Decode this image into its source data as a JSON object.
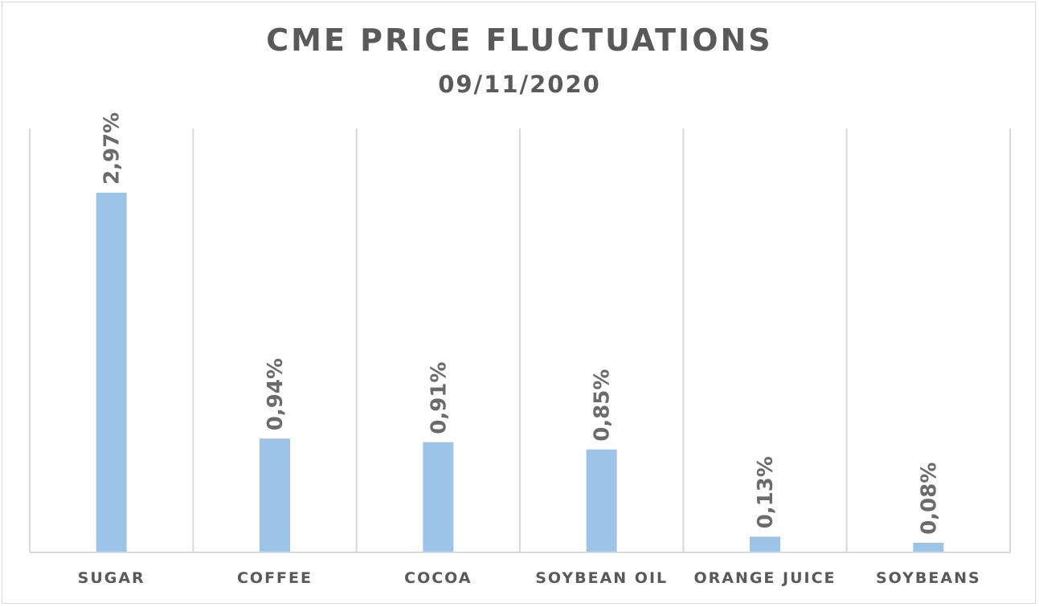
{
  "chart_data": {
    "type": "bar",
    "title": "CME PRICE FLUCTUATIONS",
    "subtitle": "09/11/2020",
    "categories": [
      "SUGAR",
      "COFFEE",
      "COCOA",
      "SOYBEAN OIL",
      "ORANGE JUICE",
      "SOYBEANS"
    ],
    "values": [
      2.97,
      0.94,
      0.91,
      0.85,
      0.13,
      0.08
    ],
    "data_labels": [
      "2,97%",
      "0,94%",
      "0,91%",
      "0,85%",
      "0,13%",
      "0,08%"
    ],
    "xlabel": "",
    "ylabel": "",
    "ylim": [
      0,
      3.5
    ],
    "grid": "vertical separators",
    "legend": "none",
    "bar_color": "#9dc3e6",
    "text_color": "#595959"
  }
}
